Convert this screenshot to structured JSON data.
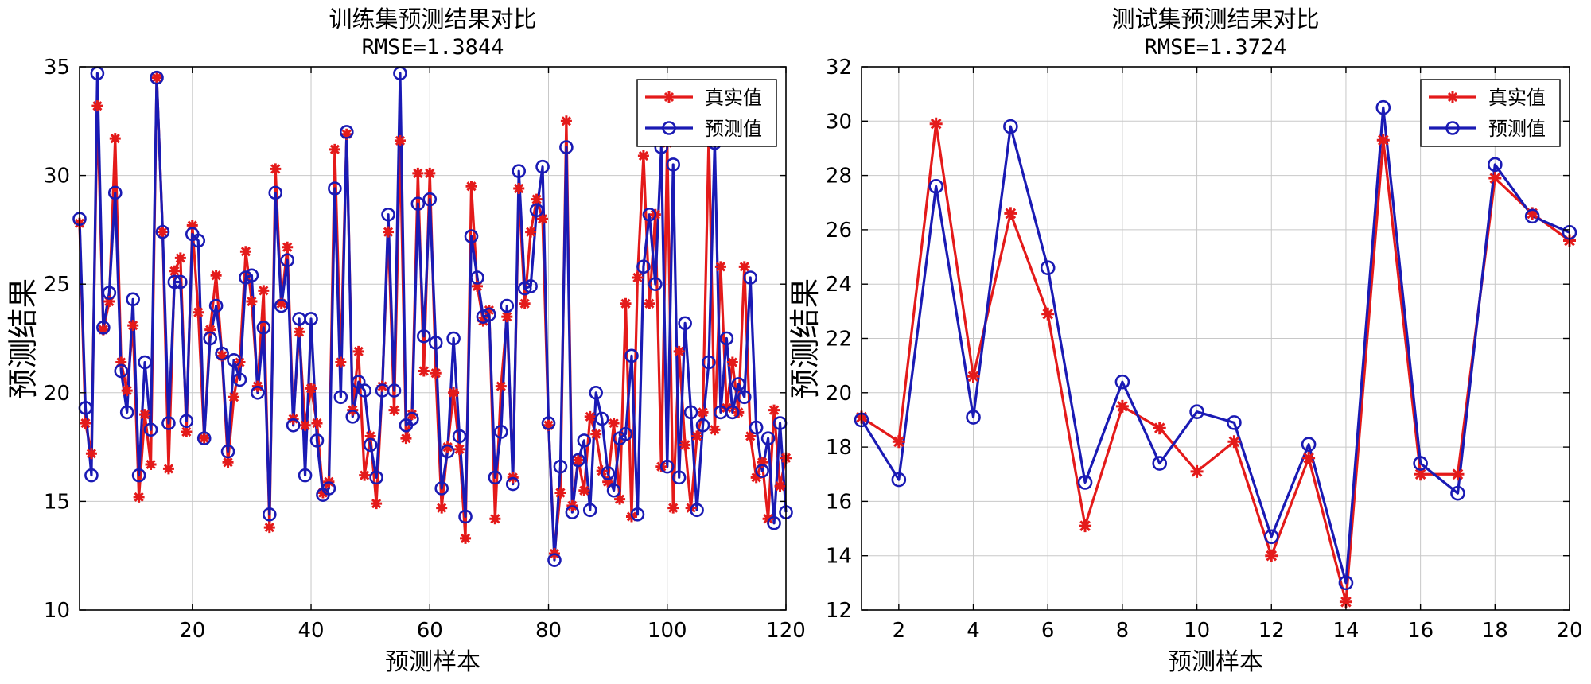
{
  "chart_data": [
    {
      "type": "line",
      "title": "训练集预测结果对比",
      "subtitle": "RMSE=1.3844",
      "xlabel": "预测样本",
      "ylabel": "预测结果",
      "xlim": [
        1,
        120
      ],
      "ylim": [
        10,
        35
      ],
      "xticks": [
        20,
        40,
        60,
        80,
        100,
        120
      ],
      "yticks": [
        10,
        15,
        20,
        25,
        30,
        35
      ],
      "grid": true,
      "legend_position": "top-right",
      "series": [
        {
          "name": "真实值",
          "color": "#e41a1a",
          "marker": "asterisk",
          "values": [
            27.8,
            18.6,
            17.2,
            33.2,
            22.9,
            24.2,
            31.7,
            21.4,
            20.1,
            23.1,
            15.2,
            19.0,
            16.7,
            34.5,
            27.4,
            16.5,
            25.6,
            26.2,
            18.2,
            27.7,
            23.7,
            17.9,
            22.9,
            25.4,
            21.7,
            16.8,
            19.8,
            21.4,
            26.5,
            24.2,
            20.3,
            24.7,
            13.8,
            30.3,
            24.1,
            26.7,
            18.8,
            22.8,
            18.5,
            20.2,
            18.6,
            15.4,
            15.9,
            31.2,
            21.4,
            31.9,
            19.2,
            21.9,
            16.2,
            18.0,
            14.9,
            20.3,
            27.4,
            19.2,
            31.6,
            17.9,
            19.0,
            30.1,
            21.0,
            30.1,
            20.9,
            14.7,
            17.5,
            20.0,
            17.4,
            13.3,
            29.5,
            24.9,
            23.3,
            23.8,
            14.2,
            20.3,
            23.5,
            16.1,
            29.4,
            24.1,
            27.4,
            28.9,
            28.0,
            18.5,
            12.6,
            15.4,
            32.5,
            14.8,
            16.9,
            15.5,
            18.9,
            18.1,
            16.4,
            15.9,
            18.6,
            15.1,
            24.1,
            14.3,
            25.3,
            30.9,
            24.1,
            28.2,
            16.6,
            31.5,
            14.7,
            21.9,
            17.6,
            14.7,
            18.0,
            19.1,
            31.8,
            18.3,
            25.8,
            19.3,
            21.4,
            19.1,
            25.8,
            18.0,
            16.1,
            16.8,
            14.2,
            19.2,
            15.7,
            17.0
          ]
        },
        {
          "name": "预测值",
          "color": "#1a1ab4",
          "marker": "circle",
          "values": [
            28.0,
            19.3,
            16.2,
            34.7,
            23.0,
            24.6,
            29.2,
            21.0,
            19.1,
            24.3,
            16.2,
            21.4,
            18.3,
            34.5,
            27.4,
            18.6,
            25.1,
            25.1,
            18.7,
            27.3,
            27.0,
            17.9,
            22.5,
            24.0,
            21.8,
            17.3,
            21.5,
            20.6,
            25.3,
            25.4,
            20.0,
            23.0,
            14.4,
            29.2,
            24.0,
            26.1,
            18.5,
            23.4,
            16.2,
            23.4,
            17.8,
            15.3,
            15.6,
            29.4,
            19.8,
            32.0,
            18.9,
            20.5,
            20.1,
            17.6,
            16.1,
            20.1,
            28.2,
            20.1,
            34.7,
            18.5,
            18.8,
            28.7,
            22.6,
            28.9,
            22.3,
            15.6,
            17.3,
            22.5,
            18.0,
            14.3,
            27.2,
            25.3,
            23.5,
            23.6,
            16.1,
            18.2,
            24.0,
            15.8,
            30.2,
            24.8,
            24.9,
            28.4,
            30.4,
            18.6,
            12.3,
            16.6,
            31.3,
            14.5,
            16.9,
            17.8,
            14.6,
            20.0,
            18.8,
            16.3,
            15.5,
            17.9,
            18.1,
            21.7,
            14.4,
            25.8,
            28.2,
            25.0,
            31.3,
            16.6,
            30.5,
            16.1,
            23.2,
            19.1,
            14.6,
            18.5,
            21.4,
            31.5,
            19.1,
            22.5,
            19.1,
            20.4,
            19.8,
            25.3,
            18.4,
            16.4,
            17.9,
            14.0,
            18.6,
            14.5
          ]
        }
      ]
    },
    {
      "type": "line",
      "title": "测试集预测结果对比",
      "subtitle": "RMSE=1.3724",
      "xlabel": "预测样本",
      "ylabel": "预测结果",
      "xlim": [
        1,
        20
      ],
      "ylim": [
        12,
        32
      ],
      "xticks": [
        2,
        4,
        6,
        8,
        10,
        12,
        14,
        16,
        18,
        20
      ],
      "yticks": [
        12,
        14,
        16,
        18,
        20,
        22,
        24,
        26,
        28,
        30,
        32
      ],
      "grid": true,
      "legend_position": "top-right",
      "series": [
        {
          "name": "真实值",
          "color": "#e41a1a",
          "marker": "asterisk",
          "values": [
            19.1,
            18.2,
            29.9,
            20.6,
            26.6,
            22.9,
            15.1,
            19.5,
            18.7,
            17.1,
            18.2,
            14.0,
            17.6,
            12.3,
            29.3,
            17.0,
            17.0,
            27.9,
            26.6,
            25.6
          ]
        },
        {
          "name": "预测值",
          "color": "#1a1ab4",
          "marker": "circle",
          "values": [
            19.0,
            16.8,
            27.6,
            19.1,
            29.8,
            24.6,
            16.7,
            20.4,
            17.4,
            19.3,
            18.9,
            14.7,
            18.1,
            13.0,
            30.5,
            17.4,
            16.3,
            28.4,
            26.5,
            25.9
          ]
        }
      ]
    }
  ]
}
